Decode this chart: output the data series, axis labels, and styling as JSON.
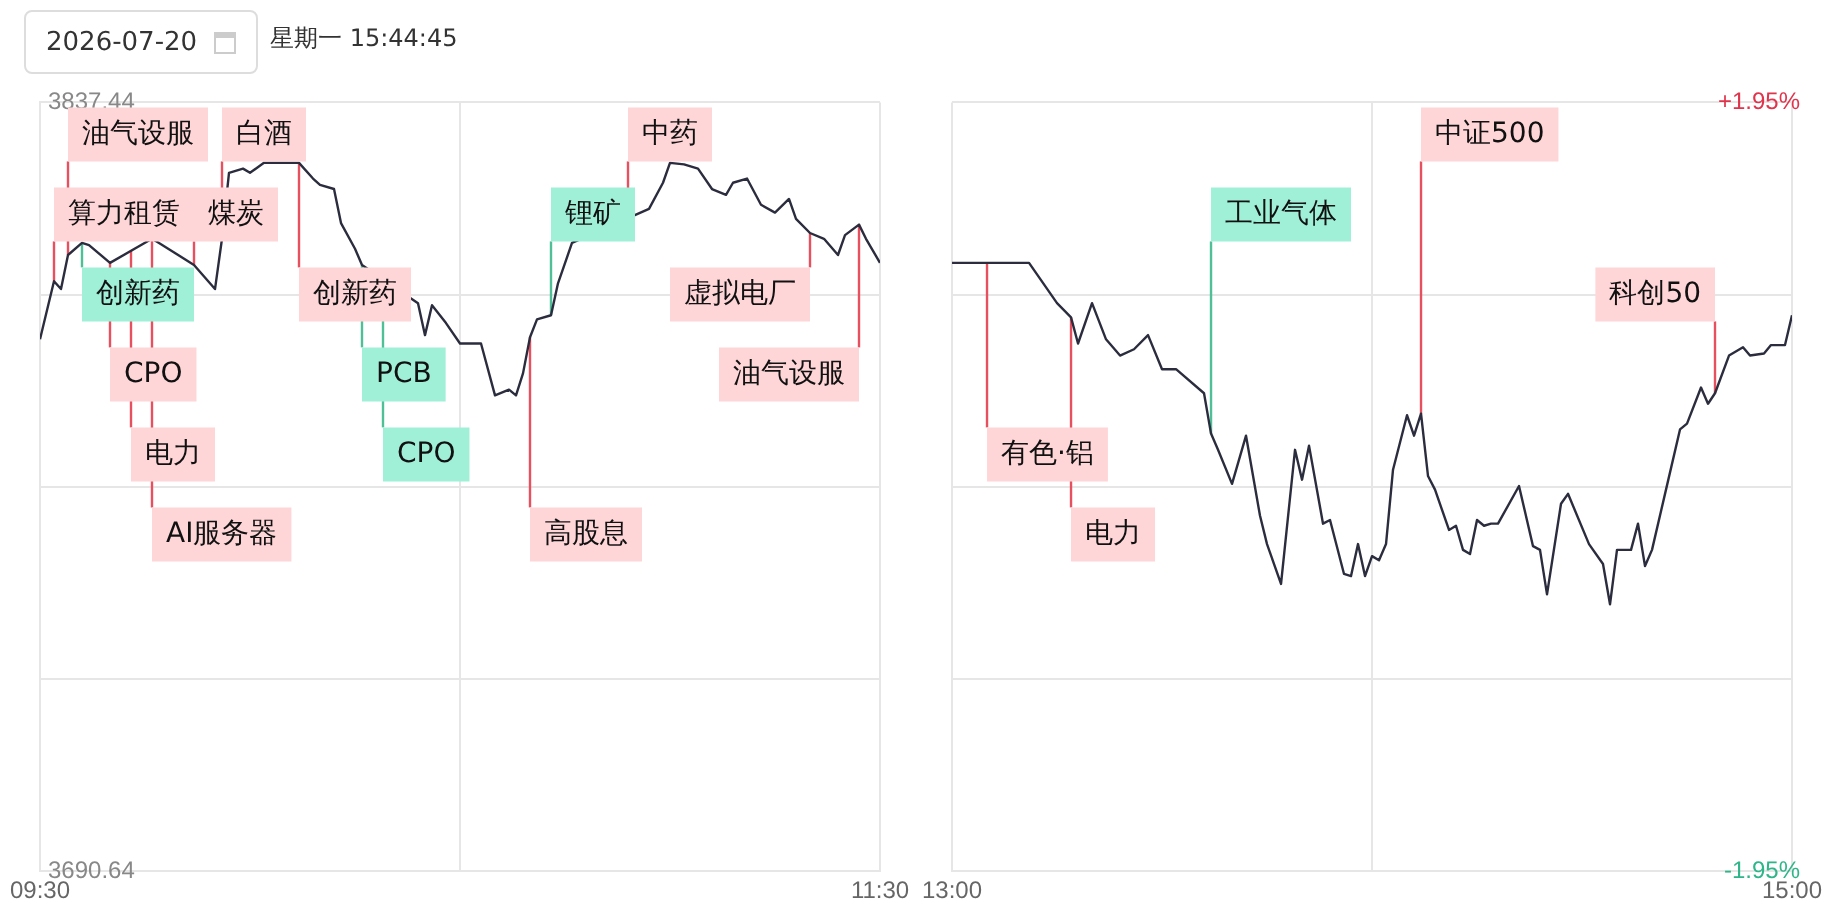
{
  "chart_data": [
    {
      "type": "line",
      "title": "2026-07-20",
      "subtitle": "星期一 15:44:45",
      "x": [
        "2026-07-20T09:30",
        "2026-07-20T09:32",
        "2026-07-20T09:33",
        "2026-07-20T09:34",
        "2026-07-20T09:36",
        "2026-07-20T09:37",
        "2026-07-20T09:40",
        "2026-07-20T09:46",
        "2026-07-20T09:47",
        "2026-07-20T09:52",
        "2026-07-20T09:55",
        "2026-07-20T09:56",
        "2026-07-20T09:57",
        "2026-07-20T09:59",
        "2026-07-20T10:00",
        "2026-07-20T10:02",
        "2026-07-20T10:07",
        "2026-07-20T10:09",
        "2026-07-20T10:10",
        "2026-07-20T10:12",
        "2026-07-20T10:13",
        "2026-07-20T10:15",
        "2026-07-20T10:16",
        "2026-07-20T10:24",
        "2026-07-20T10:25",
        "2026-07-20T10:26",
        "2026-07-20T10:28",
        "2026-07-20T10:30",
        "2026-07-20T10:33",
        "2026-07-20T10:35",
        "2026-07-20T10:37",
        "2026-07-20T10:38",
        "2026-07-20T10:39",
        "2026-07-20T10:40",
        "2026-07-20T10:41",
        "2026-07-20T10:43",
        "2026-07-20T10:44",
        "2026-07-20T10:46",
        "2026-07-20T10:57",
        "2026-07-20T10:59",
        "2026-07-20T11:00",
        "2026-07-20T11:02",
        "2026-07-20T11:04",
        "2026-07-20T11:06",
        "2026-07-20T11:08",
        "2026-07-20T11:09",
        "2026-07-20T11:11",
        "2026-07-20T11:13",
        "2026-07-20T11:15",
        "2026-07-20T11:17",
        "2026-07-20T11:18",
        "2026-07-20T11:20",
        "2026-07-20T11:22",
        "2026-07-20T11:24",
        "2026-07-20T11:25",
        "2026-07-20T11:27",
        "2026-07-20T11:28",
        "2026-07-20T11:30"
      ],
      "series": [
        {
          "color": "#2b2d3e",
          "values": [
            3792.2,
            3803.3,
            3801.8,
            3808.3,
            3810.6,
            3810.2,
            3806.8,
            3811.4,
            3810.6,
            3806.4,
            3801.8,
            3811.4,
            3824.0,
            3824.8,
            3824.0,
            3825.9,
            3825.9,
            3822.9,
            3821.7,
            3820.9,
            3814.4,
            3809.5,
            3806.4,
            3799.1,
            3793.0,
            3798.7,
            3795.3,
            3791.4,
            3791.4,
            3781.5,
            3782.6,
            3781.5,
            3785.7,
            3792.6,
            3796.0,
            3796.8,
            3802.9,
            3810.6,
            3817.1,
            3822.1,
            3825.9,
            3825.6,
            3824.8,
            3820.9,
            3819.8,
            3822.1,
            3822.9,
            3817.9,
            3816.4,
            3819.0,
            3815.2,
            3812.5,
            3811.4,
            3808.3,
            3812.1,
            3814.1,
            3811.4,
            3806.8
          ]
        }
      ],
      "xlim": [
        "2026-07-20T09:30",
        "2026-07-20T11:30"
      ],
      "xticks": [
        {
          "value": "2026-07-20T09:30",
          "label": "09:30"
        },
        {
          "value": "2026-07-20T10:30",
          "label": null
        },
        {
          "value": "2026-07-20T11:30",
          "label": "11:30"
        }
      ],
      "ylim": [
        3690.64,
        3837.44
      ],
      "yticks": [
        {
          "value": 3690.64,
          "label": "3690.64"
        },
        {
          "value": 3727.34,
          "label": null
        },
        {
          "value": 3764.04,
          "label": null
        },
        {
          "value": 3800.74,
          "label": null
        },
        {
          "value": 3837.44,
          "label": "3837.44"
        }
      ],
      "grid": true,
      "legend": false,
      "annotations": [
        {
          "text": "算力租赁",
          "x": "2026-07-20T09:32",
          "y": 3803.3
        },
        {
          "text": "油气设服",
          "x": "2026-07-20T09:34",
          "y": 3808.3
        },
        {
          "text": "创新药",
          "x": "2026-07-20T09:36",
          "y": 3810.6
        },
        {
          "text": "CPO",
          "x": "2026-07-20T09:40",
          "y": 3806.8
        },
        {
          "text": "电力",
          "x": "2026-07-20T09:43",
          "y": 3809.1
        },
        {
          "text": "AI服务器",
          "x": "2026-07-20T09:46",
          "y": 3811.4
        },
        {
          "text": "煤炭",
          "x": "2026-07-20T09:52",
          "y": 3806.4
        },
        {
          "text": "白酒",
          "x": "2026-07-20T09:56",
          "y": 3811.4
        },
        {
          "text": "创新药",
          "x": "2026-07-20T10:07",
          "y": 3825.9
        },
        {
          "text": "PCB",
          "x": "2026-07-20T10:16",
          "y": 3806.4
        },
        {
          "text": "CPO",
          "x": "2026-07-20T10:19",
          "y": 3803.7
        },
        {
          "text": "高股息",
          "x": "2026-07-20T10:40",
          "y": 3792.6
        },
        {
          "text": "锂矿",
          "x": "2026-07-20T10:43",
          "y": 3796.8
        },
        {
          "text": "中药",
          "x": "2026-07-20T10:54",
          "y": 3815.3
        },
        {
          "text": "虚拟电厂",
          "x": "2026-07-20T11:20",
          "y": 3812.5
        },
        {
          "text": "油气设服",
          "x": "2026-07-20T11:27",
          "y": 3814.1
        }
      ]
    },
    {
      "type": "line",
      "x": [
        "2026-07-20T13:00",
        "2026-07-20T13:05",
        "2026-07-20T13:11",
        "2026-07-20T13:15",
        "2026-07-20T13:17",
        "2026-07-20T13:18",
        "2026-07-20T13:20",
        "2026-07-20T13:22",
        "2026-07-20T13:24",
        "2026-07-20T13:26",
        "2026-07-20T13:28",
        "2026-07-20T13:30",
        "2026-07-20T13:32",
        "2026-07-20T13:36",
        "2026-07-20T13:37",
        "2026-07-20T13:38",
        "2026-07-20T13:40",
        "2026-07-20T13:42",
        "2026-07-20T13:44",
        "2026-07-20T13:45",
        "2026-07-20T13:47",
        "2026-07-20T13:49",
        "2026-07-20T13:50",
        "2026-07-20T13:51",
        "2026-07-20T13:53",
        "2026-07-20T13:54",
        "2026-07-20T13:56",
        "2026-07-20T13:57",
        "2026-07-20T13:58",
        "2026-07-20T13:59",
        "2026-07-20T14:00",
        "2026-07-20T14:01",
        "2026-07-20T14:02",
        "2026-07-20T14:03",
        "2026-07-20T14:05",
        "2026-07-20T14:06",
        "2026-07-20T14:07",
        "2026-07-20T14:08",
        "2026-07-20T14:09",
        "2026-07-20T14:11",
        "2026-07-20T14:12",
        "2026-07-20T14:13",
        "2026-07-20T14:14",
        "2026-07-20T14:15",
        "2026-07-20T14:16",
        "2026-07-20T14:17",
        "2026-07-20T14:18",
        "2026-07-20T14:21",
        "2026-07-20T14:23",
        "2026-07-20T14:24",
        "2026-07-20T14:25",
        "2026-07-20T14:27",
        "2026-07-20T14:28",
        "2026-07-20T14:31",
        "2026-07-20T14:33",
        "2026-07-20T14:34",
        "2026-07-20T14:35",
        "2026-07-20T14:37",
        "2026-07-20T14:38",
        "2026-07-20T14:39",
        "2026-07-20T14:40",
        "2026-07-20T14:42",
        "2026-07-20T14:44",
        "2026-07-20T14:45",
        "2026-07-20T14:47",
        "2026-07-20T14:48",
        "2026-07-20T14:49",
        "2026-07-20T14:51",
        "2026-07-20T14:53",
        "2026-07-20T14:54",
        "2026-07-20T14:56",
        "2026-07-20T14:57",
        "2026-07-20T14:59",
        "2026-07-20T15:00"
      ],
      "series": [
        {
          "color": "#2b2d3e",
          "values": [
            3806.8,
            3806.8,
            3806.8,
            3799.1,
            3796.4,
            3791.4,
            3799.1,
            3792.2,
            3789.1,
            3790.3,
            3793.0,
            3786.5,
            3786.5,
            3781.9,
            3774.2,
            3771.1,
            3764.6,
            3773.8,
            3758.5,
            3753.1,
            3745.5,
            3771.1,
            3765.4,
            3771.9,
            3757.0,
            3757.7,
            3747.4,
            3747.0,
            3753.1,
            3747.0,
            3750.8,
            3750.0,
            3753.1,
            3767.3,
            3777.7,
            3773.8,
            3778.0,
            3766.1,
            3763.5,
            3755.8,
            3756.6,
            3752.0,
            3751.2,
            3757.7,
            3756.6,
            3757.0,
            3757.0,
            3764.2,
            3752.7,
            3752.0,
            3743.5,
            3760.8,
            3762.7,
            3753.1,
            3749.3,
            3741.6,
            3752.0,
            3752.0,
            3757.0,
            3748.9,
            3752.0,
            3763.5,
            3775.0,
            3776.1,
            3783.0,
            3779.9,
            3781.9,
            3789.1,
            3790.7,
            3789.1,
            3789.5,
            3791.1,
            3791.1,
            3796.8
          ]
        }
      ],
      "xlim": [
        "2026-07-20T13:00",
        "2026-07-20T15:00"
      ],
      "xticks": [
        {
          "value": "2026-07-20T13:00",
          "label": "13:00"
        },
        {
          "value": "2026-07-20T14:00",
          "label": null
        },
        {
          "value": "2026-07-20T15:00",
          "label": "15:00"
        }
      ],
      "ylim": [
        3690.64,
        3837.44
      ],
      "yticks": [
        3690.64,
        3727.34,
        3764.04,
        3800.74,
        3837.44
      ],
      "y2lim": [
        -1.95,
        1.95
      ],
      "y2ticks": [
        {
          "value": -1.95,
          "label": "-1.95%"
        },
        {
          "value": 1.95,
          "label": "+1.95%"
        }
      ],
      "tick_labels": "x",
      "grid": true,
      "legend": false,
      "annotations": [
        {
          "text": "有色·铝",
          "x": "2026-07-20T13:05",
          "y": 3806.8
        },
        {
          "text": "电力",
          "x": "2026-07-20T13:17",
          "y": 3796.4
        },
        {
          "text": "工业气体",
          "x": "2026-07-20T13:37",
          "y": 3774.2
        },
        {
          "text": "中证500",
          "x": "2026-07-20T14:07",
          "y": 3778.0
        },
        {
          "text": "科创50",
          "x": "2026-07-20T14:49",
          "y": 3781.9
        }
      ]
    }
  ]
}
